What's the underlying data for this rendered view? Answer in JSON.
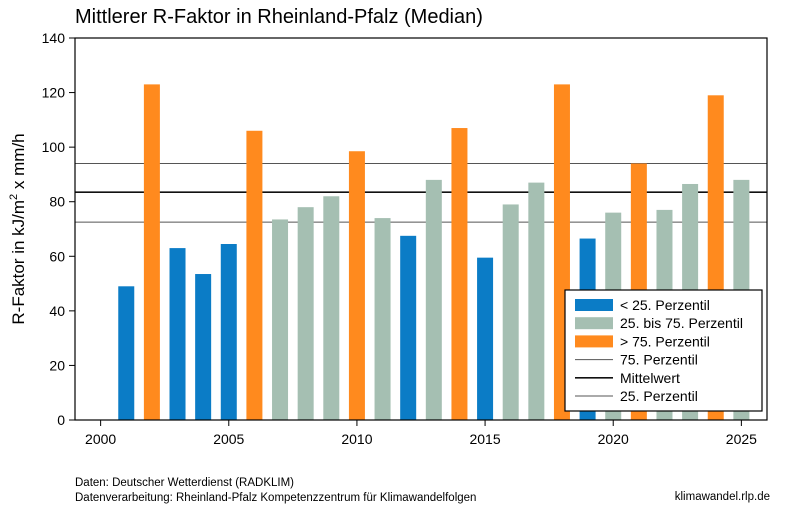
{
  "chart_data": {
    "type": "bar",
    "title": "Mittlerer R-Faktor in Rheinland-Pfalz (Median)",
    "ylabel": "R-Faktor in kJ/m² x mm/h",
    "ylabel_main": "R-Faktor in kJ/m",
    "ylabel_sup": "2",
    "ylabel_tail": " x mm/h",
    "xlabel": "",
    "xlim": [
      1999,
      2026
    ],
    "ylim": [
      0,
      140
    ],
    "xticks": [
      2000,
      2005,
      2010,
      2015,
      2020,
      2025
    ],
    "yticks": [
      0,
      20,
      40,
      60,
      80,
      100,
      120,
      140
    ],
    "grid": false,
    "legend_position": "bottom-right",
    "x": [
      2001,
      2002,
      2003,
      2004,
      2005,
      2006,
      2007,
      2008,
      2009,
      2010,
      2011,
      2012,
      2013,
      2014,
      2015,
      2016,
      2017,
      2018,
      2019,
      2020,
      2021,
      2022,
      2023,
      2024,
      2025
    ],
    "values": [
      49,
      123,
      63,
      53.5,
      64.5,
      106,
      73.5,
      78,
      82,
      98.5,
      74,
      67.5,
      88,
      107,
      59.5,
      79,
      87,
      123,
      66.5,
      76,
      94,
      77,
      86.5,
      119,
      88
    ],
    "category": [
      "low",
      "high",
      "low",
      "low",
      "low",
      "high",
      "mid",
      "mid",
      "mid",
      "high",
      "mid",
      "low",
      "mid",
      "high",
      "low",
      "mid",
      "mid",
      "high",
      "low",
      "mid",
      "high",
      "mid",
      "mid",
      "high",
      "mid"
    ],
    "colors": {
      "low": "#0b7cc6",
      "mid": "#a5bfb2",
      "high": "#ff8a1e"
    },
    "reference_lines": {
      "p75": 94,
      "mean": 83.5,
      "p25": 72.5
    },
    "legend": [
      {
        "key": "low",
        "label": "< 25. Perzentil",
        "kind": "box"
      },
      {
        "key": "mid",
        "label": "25. bis 75. Perzentil",
        "kind": "box"
      },
      {
        "key": "high",
        "label": "> 75. Perzentil",
        "kind": "box"
      },
      {
        "key": "p75",
        "label": "75. Perzentil",
        "kind": "thin"
      },
      {
        "key": "mean",
        "label": "Mittelwert",
        "kind": "thick"
      },
      {
        "key": "p25",
        "label": "25. Perzentil",
        "kind": "thin"
      }
    ]
  },
  "footer": {
    "source": "Daten: Deutscher Wetterdienst (RADKLIM)",
    "processing": "Datenverarbeitung: Rheinland-Pfalz Kompetenzzentrum für Klimawandelfolgen",
    "website": "klimawandel.rlp.de"
  }
}
